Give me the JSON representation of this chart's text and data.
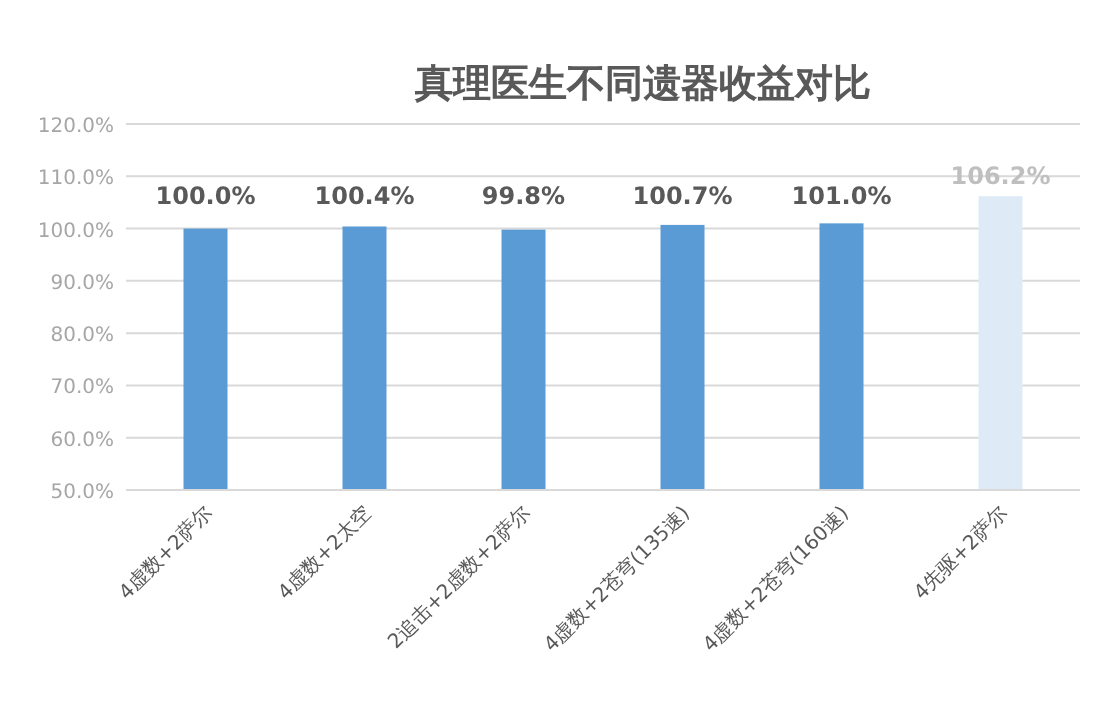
{
  "chart_data": {
    "type": "bar",
    "title": "真理医生不同遗器收益对比",
    "categories": [
      "4虚数+2萨尔",
      "4虚数+2太空",
      "2追击+2虚数+2萨尔",
      "4虚数+2苍穹(135速)",
      "4虚数+2苍穹(160速)",
      "4先驱+2萨尔"
    ],
    "values": [
      100.0,
      100.4,
      99.8,
      100.7,
      101.0,
      106.2
    ],
    "value_labels": [
      "100.0%",
      "100.4%",
      "99.8%",
      "100.7%",
      "101.0%",
      "106.2%"
    ],
    "colors": [
      "#5b9bd5",
      "#5b9bd5",
      "#5b9bd5",
      "#5b9bd5",
      "#5b9bd5",
      "#deebf7"
    ],
    "ylim": [
      50,
      120
    ],
    "yticks": [
      {
        "value": 50,
        "label": "50.0%"
      },
      {
        "value": 60,
        "label": "60.0%"
      },
      {
        "value": 70,
        "label": "70.0%"
      },
      {
        "value": 80,
        "label": "80.0%"
      },
      {
        "value": 90,
        "label": "90.0%"
      },
      {
        "value": 100,
        "label": "100.0%"
      },
      {
        "value": 110,
        "label": "110.0%"
      },
      {
        "value": 120,
        "label": "120.0%"
      }
    ],
    "grid": "y"
  }
}
